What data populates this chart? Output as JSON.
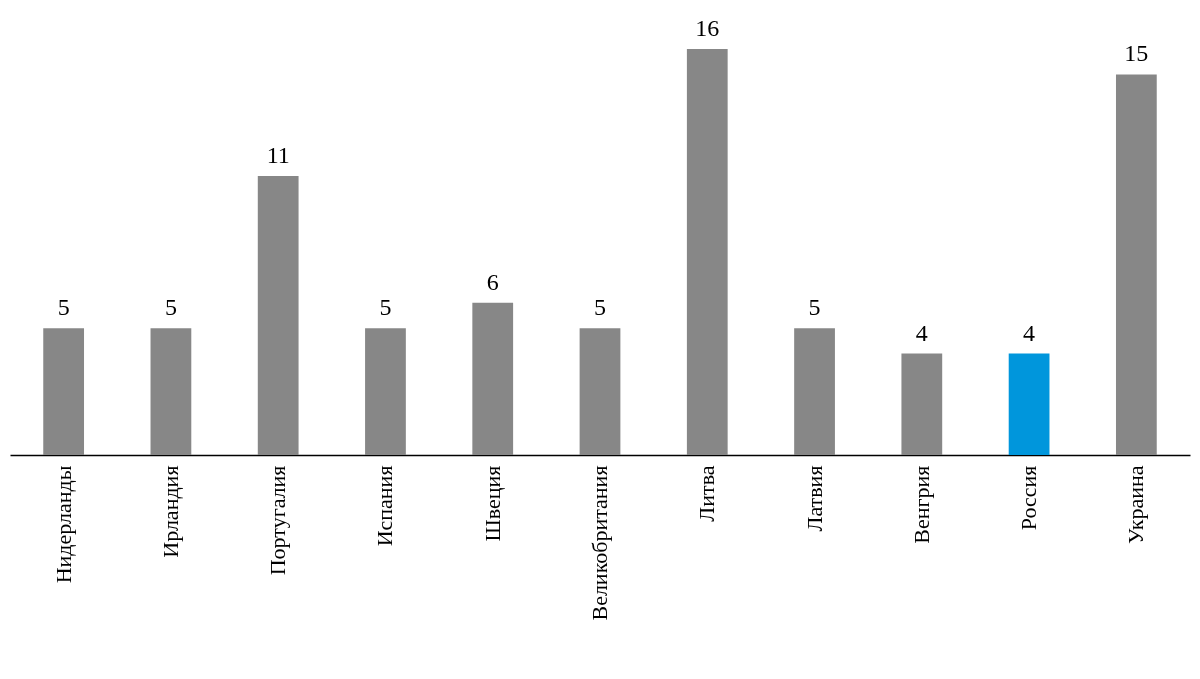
{
  "chart_data": {
    "type": "bar",
    "categories": [
      "Нидерланды",
      "Ирландия",
      "Португалия",
      "Испания",
      "Швеция",
      "Великобритания",
      "Литва",
      "Латвия",
      "Венгрия",
      "Россия",
      "Украина"
    ],
    "values": [
      5,
      5,
      11,
      5,
      6,
      5,
      16,
      5,
      4,
      4,
      15
    ],
    "colors": [
      "#878787",
      "#878787",
      "#878787",
      "#878787",
      "#878787",
      "#878787",
      "#878787",
      "#878787",
      "#878787",
      "#0096dc",
      "#878787"
    ],
    "data_labels": true
  }
}
